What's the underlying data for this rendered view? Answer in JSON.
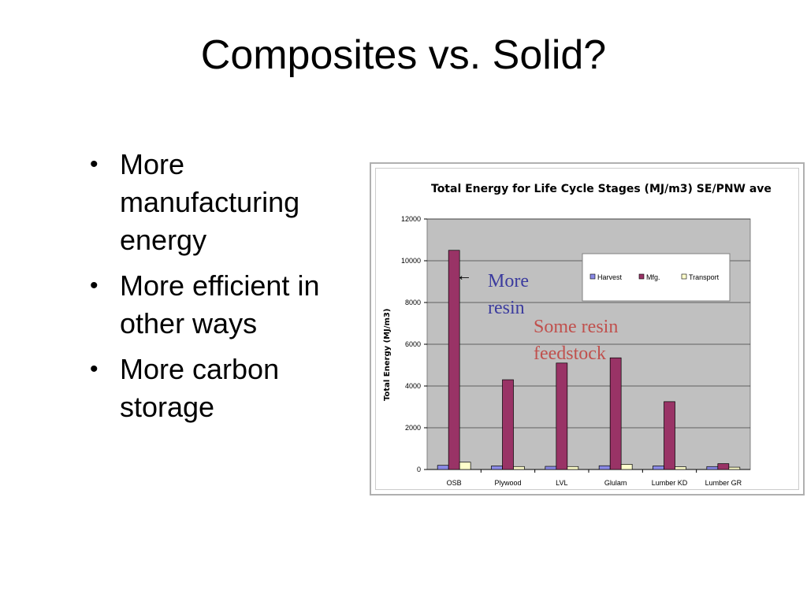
{
  "slide": {
    "title": "Composites vs. Solid?",
    "bullets": [
      "More manufacturing energy",
      "More efficient in other ways",
      "More carbon storage"
    ]
  },
  "annotations": {
    "more_resin": [
      "More",
      "resin"
    ],
    "some_resin": [
      "Some resin",
      "feedstock"
    ],
    "arrow_glyph": "←"
  },
  "colors": {
    "plot_bg": "#c0c0c0",
    "harvest": "#8a8ae6",
    "mfg": "#993366",
    "transport": "#ffffcc"
  },
  "chart_data": {
    "type": "bar",
    "title": "Total Energy for Life Cycle Stages (MJ/m3) SE/PNW ave",
    "xlabel": "",
    "ylabel": "Total Energy (MJ/m3)",
    "ylim": [
      0,
      12000
    ],
    "yticks": [
      "0",
      "2000",
      "4000",
      "6000",
      "8000",
      "10000",
      "12000"
    ],
    "grid": true,
    "legend_position": "top-right",
    "categories": [
      "OSB",
      "Plywood",
      "LVL",
      "Glulam",
      "Lumber KD",
      "Lumber GR"
    ],
    "series": [
      {
        "name": "Harvest",
        "values": [
          200,
          170,
          150,
          180,
          170,
          140
        ]
      },
      {
        "name": "Mfg.",
        "values": [
          10500,
          4300,
          5100,
          5350,
          3250,
          280
        ]
      },
      {
        "name": "Transport",
        "values": [
          350,
          140,
          140,
          250,
          130,
          110
        ]
      }
    ]
  }
}
